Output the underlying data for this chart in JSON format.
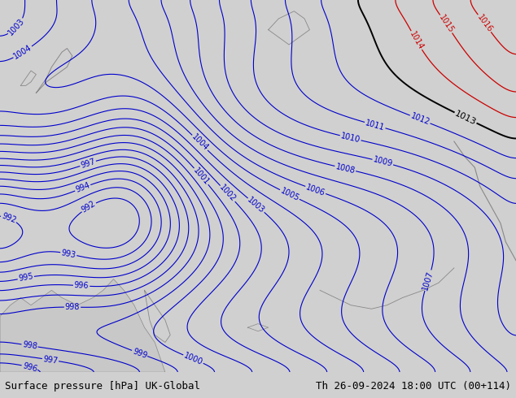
{
  "title_left": "Surface pressure [hPa] UK-Global",
  "title_right": "Th 26-09-2024 18:00 UTC (00+114)",
  "background_color": "#a8f080",
  "mountain_color": "#c8c8c8",
  "coast_color": "#888888",
  "blue_contour_color": "#0000cc",
  "red_contour_color": "#cc0000",
  "black_contour_color": "#000000",
  "bottom_bar_color": "#d0d0d0",
  "bottom_text_color": "#000000",
  "font_size_bottom": 9,
  "label_fontsize": 7
}
